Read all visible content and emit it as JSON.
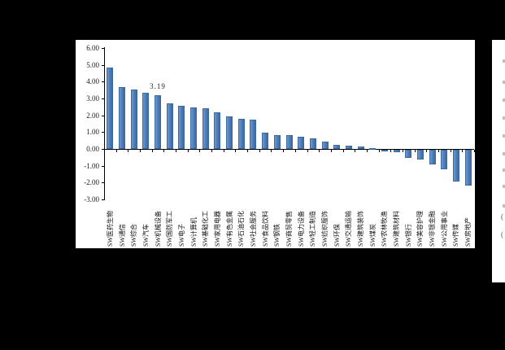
{
  "window": {
    "background_color": "#000000",
    "panel_color": "#ffffff"
  },
  "chart_data": {
    "type": "bar",
    "title": "",
    "xlabel": "",
    "ylabel": "",
    "legend": "none",
    "grid": "off",
    "bar_color": "#4f81bd",
    "ylim": [
      -3,
      6
    ],
    "y_ticks": [
      "6.00",
      "5.00",
      "4.00",
      "3.00",
      "2.00",
      "1.00",
      "0.00",
      "-1.00",
      "-2.00",
      "-3.00"
    ],
    "y_tick_values": [
      6,
      5,
      4,
      3,
      2,
      1,
      0,
      -1,
      -2,
      -3
    ],
    "categories": [
      "SW医药生物",
      "SW通信",
      "SW综合",
      "SW汽车",
      "SW机械设备",
      "SW国防军工",
      "SW电子",
      "SW计算机",
      "SW基础化工",
      "SW家用电器",
      "SW有色金属",
      "SW石油石化",
      "SW社会服务",
      "SW食品饮料",
      "SW钢铁",
      "SW商贸零售",
      "SW电力设备",
      "SW轻工制造",
      "SW纺织服饰",
      "SW环保",
      "SW交通运输",
      "SW建筑装饰",
      "SW煤炭",
      "SW农林牧渔",
      "SW建筑材料",
      "SW银行",
      "SW美容护理",
      "SW非银金融",
      "SW公用事业",
      "SW传媒",
      "SW房地产"
    ],
    "values": [
      4.83,
      3.67,
      3.55,
      3.32,
      3.19,
      2.71,
      2.56,
      2.45,
      2.42,
      2.19,
      1.92,
      1.79,
      1.76,
      0.96,
      0.83,
      0.8,
      0.72,
      0.64,
      0.43,
      0.24,
      0.19,
      0.13,
      0.03,
      -0.04,
      -0.15,
      -0.5,
      -0.58,
      -0.86,
      -1.17,
      -1.86,
      -2.14
    ],
    "annotation": {
      "text": "3.19",
      "category_index": 4
    }
  },
  "right_strip": {
    "fragments": [
      "(",
      "("
    ]
  }
}
